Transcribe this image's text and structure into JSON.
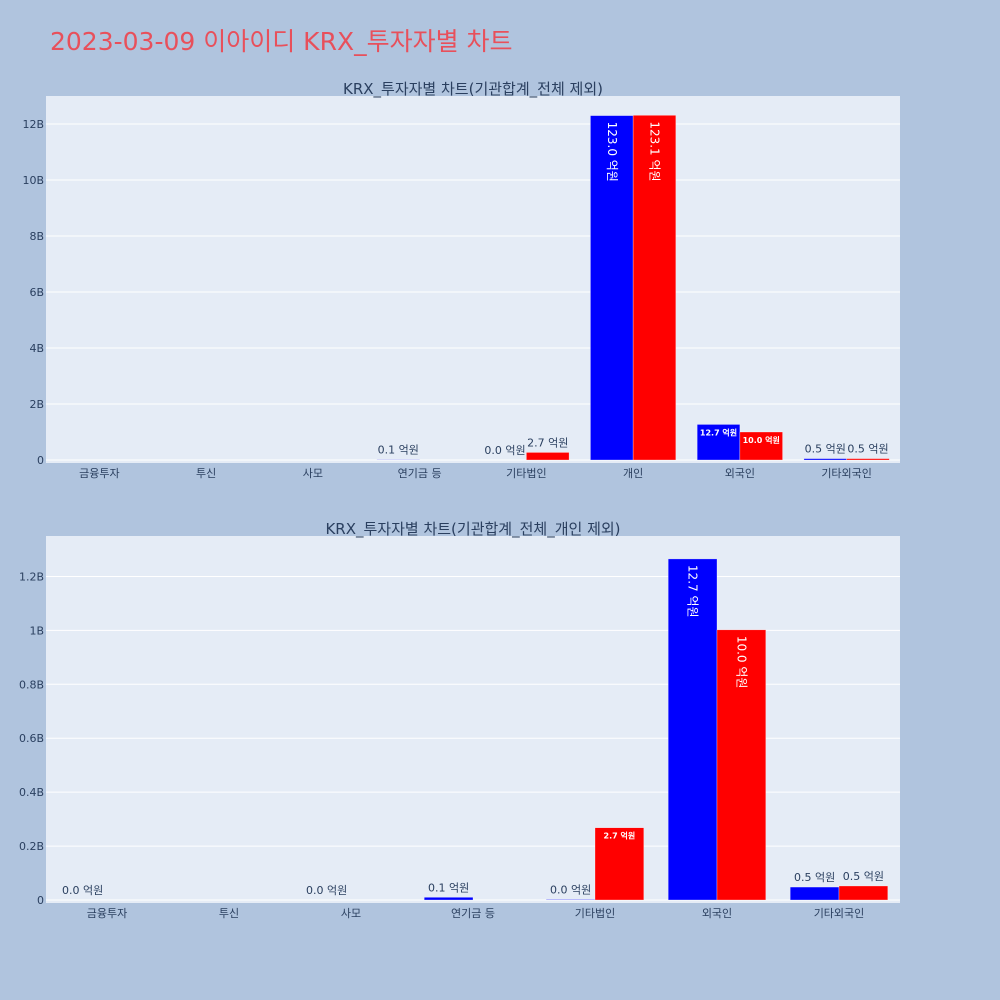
{
  "page": {
    "title": "2023-03-09 이아이디 KRX_투자자별 차트"
  },
  "chart_data": [
    {
      "type": "bar",
      "title": "KRX_투자자별 차트(기관합계_전체 제외)",
      "categories": [
        "금융투자",
        "투신",
        "사모",
        "연기금 등",
        "기타법인",
        "개인",
        "외국인",
        "기타외국인"
      ],
      "ylim": [
        0,
        13000000000
      ],
      "ytick_values": [
        0,
        2000000000,
        4000000000,
        6000000000,
        8000000000,
        10000000000,
        12000000000
      ],
      "ytick_labels": [
        "0",
        "2B",
        "4B",
        "6B",
        "8B",
        "10B",
        "12B"
      ],
      "grid": true,
      "series": [
        {
          "color": "#0000ff",
          "values": [
            0,
            0,
            0,
            10000000,
            0,
            12300000000,
            1270000000,
            50000000
          ],
          "labels": [
            "",
            "",
            "",
            "0.1 억원",
            "0.0 억원",
            "123.0 억원",
            "12.7 억원",
            "0.5 억원"
          ]
        },
        {
          "color": "#ff0000",
          "values": [
            0,
            0,
            0,
            0,
            270000000,
            12310000000,
            1000000000,
            50000000
          ],
          "labels": [
            "",
            "",
            "",
            "",
            "2.7 억원",
            "123.1 억원",
            "10.0 억원",
            "0.5 억원"
          ]
        }
      ]
    },
    {
      "type": "bar",
      "title": "KRX_투자자별 차트(기관합계_전체_개인 제외)",
      "categories": [
        "금융투자",
        "투신",
        "사모",
        "연기금 등",
        "기타법인",
        "외국인",
        "기타외국인"
      ],
      "ylim": [
        0,
        1350000000
      ],
      "ytick_values": [
        0,
        200000000,
        400000000,
        600000000,
        800000000,
        1000000000,
        1200000000
      ],
      "ytick_labels": [
        "0",
        "0.2B",
        "0.4B",
        "0.6B",
        "0.8B",
        "1B",
        "1.2B"
      ],
      "grid": true,
      "series": [
        {
          "color": "#0000ff",
          "values": [
            0,
            0,
            0,
            10000000,
            2000000,
            1265000000,
            48000000
          ],
          "labels": [
            "0.0 억원",
            "",
            "0.0 억원",
            "0.1 억원",
            "0.0 억원",
            "12.7 억원",
            "0.5 억원"
          ]
        },
        {
          "color": "#ff0000",
          "values": [
            0,
            0,
            0,
            0,
            268000000,
            1002000000,
            52000000
          ],
          "labels": [
            "",
            "",
            "",
            "",
            "2.7 억원",
            "10.0 억원",
            "0.5 억원"
          ]
        }
      ]
    }
  ]
}
